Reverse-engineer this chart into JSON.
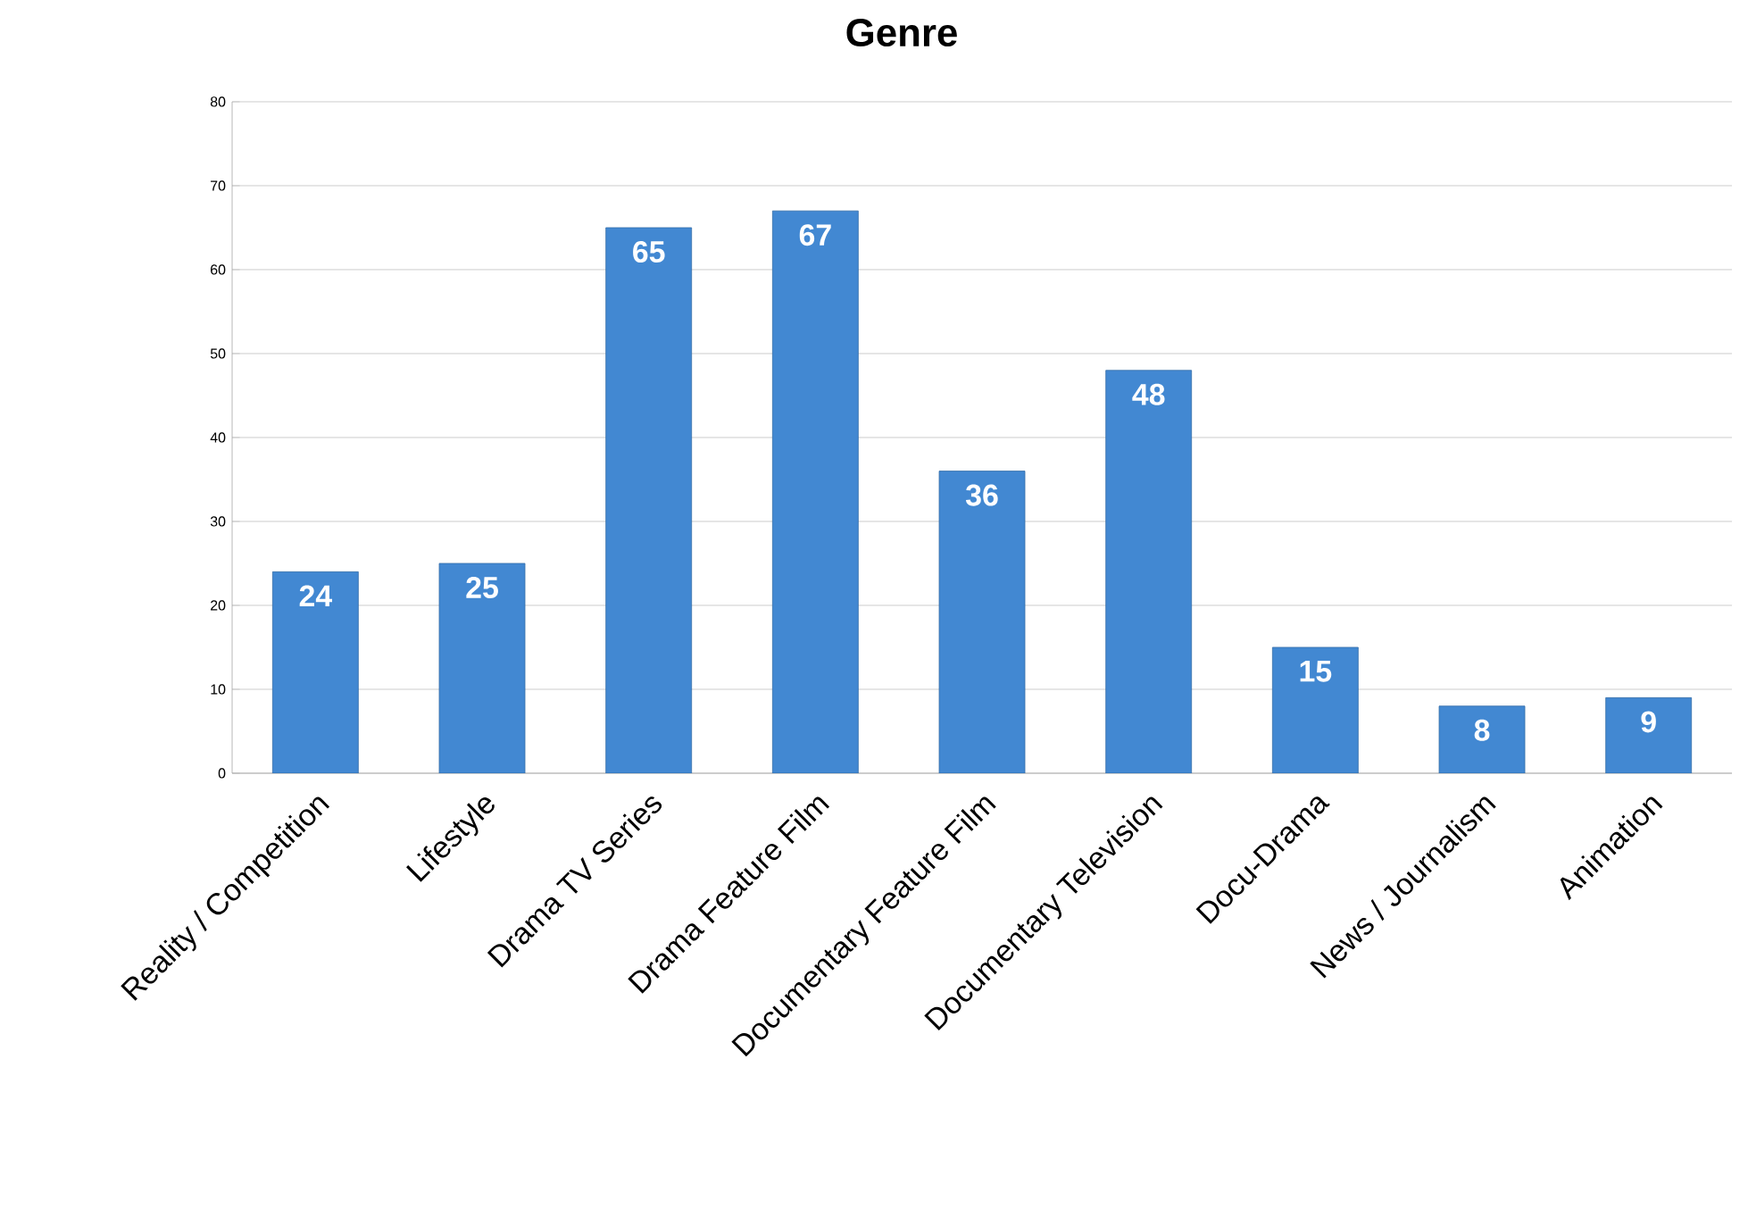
{
  "chart_data": {
    "type": "bar",
    "title": "Genre",
    "categories": [
      "Reality / Competition",
      "Lifestyle",
      "Drama TV Series",
      "Drama Feature Film",
      "Documentary Feature Film",
      "Documentary Television",
      "Docu-Drama",
      "News / Journalism",
      "Animation"
    ],
    "values": [
      24,
      25,
      65,
      67,
      36,
      48,
      15,
      8,
      9
    ],
    "color": "#4288d2",
    "ylim": [
      0,
      80
    ],
    "yticks": [
      0,
      10,
      20,
      30,
      40,
      50,
      60,
      70,
      80
    ],
    "grid": "y",
    "data_labels": true
  }
}
